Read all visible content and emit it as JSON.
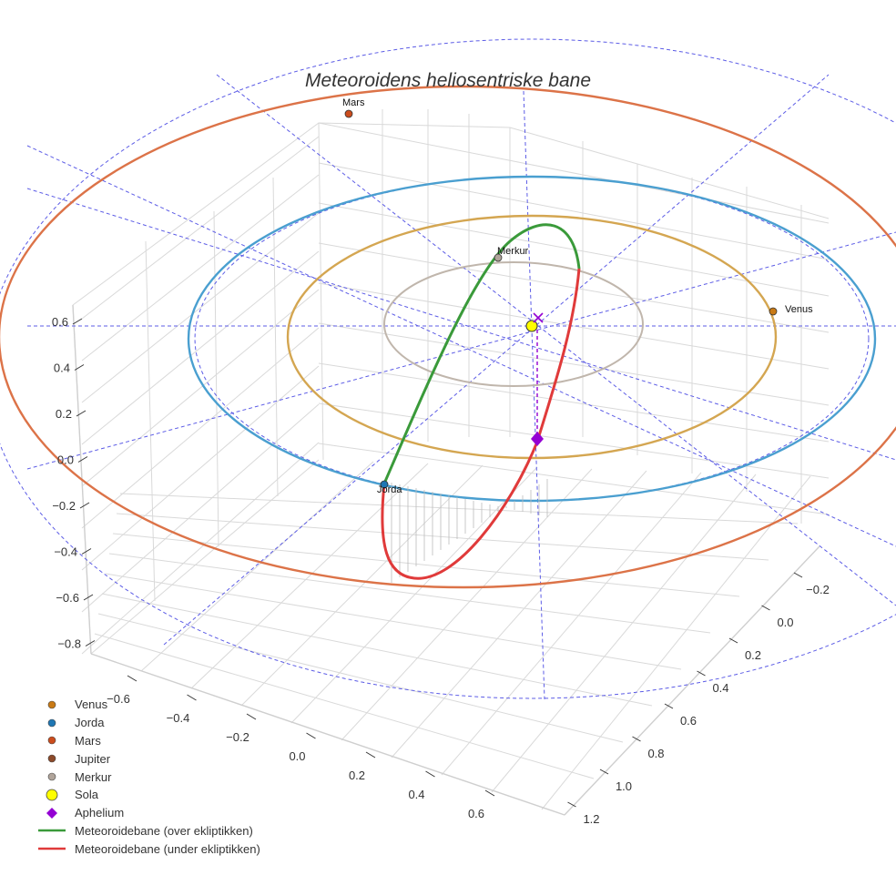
{
  "title": "Meteoroidens heliosentriske bane",
  "chart_data": {
    "type": "scatter",
    "title": "Meteoroidens heliosentriske bane",
    "xlabel": "",
    "ylabel": "",
    "zlabel": "",
    "projection": "3d",
    "x_ticks": [
      "−0.6",
      "−0.4",
      "−0.2",
      "0.0",
      "0.2",
      "0.4",
      "0.6"
    ],
    "y_ticks": [
      "−0.2",
      "0.0",
      "0.2",
      "0.4",
      "0.6",
      "0.8",
      "1.0",
      "1.2"
    ],
    "z_ticks": [
      "0.6",
      "0.4",
      "0.2",
      "0.0",
      "−0.2",
      "−0.4",
      "−0.6",
      "−0.8"
    ],
    "planet_orbits": [
      {
        "name": "Merkur",
        "a_au": 0.39,
        "color": "#c0b6ac"
      },
      {
        "name": "Venus",
        "a_au": 0.72,
        "color": "#d4a651"
      },
      {
        "name": "Jorda",
        "a_au": 1.0,
        "color": "#4a9fd0"
      },
      {
        "name": "Mars",
        "a_au": 1.52,
        "color": "#dc7348"
      }
    ],
    "points": [
      {
        "name": "Venus",
        "label": "Venus",
        "color": "#c97a15",
        "shape": "circle"
      },
      {
        "name": "Jorda",
        "label": "Jorda",
        "color": "#1f77b4",
        "shape": "circle"
      },
      {
        "name": "Mars",
        "label": "Mars",
        "color": "#cc4d1d",
        "shape": "circle"
      },
      {
        "name": "Jupiter",
        "label": "",
        "color": "#8c4a2a",
        "shape": "circle"
      },
      {
        "name": "Merkur",
        "label": "Merkur",
        "color": "#b0a49a",
        "shape": "circle"
      },
      {
        "name": "Sola",
        "label": "",
        "color": "#ffff00",
        "shape": "circle"
      },
      {
        "name": "Aphelium",
        "label": "",
        "color": "#9400d3",
        "shape": "diamond"
      }
    ],
    "series": [
      {
        "name": "Meteoroidebane (over ekliptikken)",
        "color": "#3a9a3a",
        "type": "line"
      },
      {
        "name": "Meteoroidebane (under ekliptikken)",
        "color": "#e03a3a",
        "type": "line"
      }
    ],
    "legend_position": "bottom-left",
    "grid": true
  },
  "legend": [
    {
      "label": "Venus",
      "kind": "dot",
      "color": "#c97a15"
    },
    {
      "label": "Jorda",
      "kind": "dot",
      "color": "#1f77b4"
    },
    {
      "label": "Mars",
      "kind": "dot",
      "color": "#cc4d1d"
    },
    {
      "label": "Jupiter",
      "kind": "dot",
      "color": "#8c4a2a"
    },
    {
      "label": "Merkur",
      "kind": "dot",
      "color": "#b0a49a"
    },
    {
      "label": "Sola",
      "kind": "sun",
      "color": "#ffff00"
    },
    {
      "label": "Aphelium",
      "kind": "diamond",
      "color": "#9400d3"
    },
    {
      "label": "Meteoroidebane (over ekliptikken)",
      "kind": "line",
      "color": "#3a9a3a"
    },
    {
      "label": "Meteoroidebane (under ekliptikken)",
      "kind": "line",
      "color": "#e03a3a"
    }
  ]
}
